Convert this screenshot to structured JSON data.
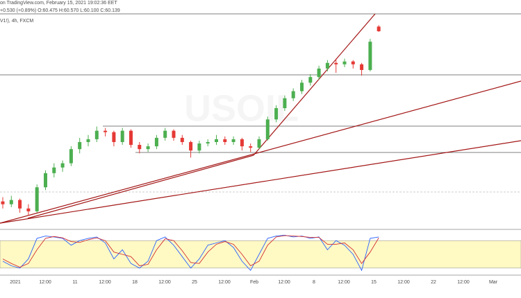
{
  "chart_data": {
    "type": "candlestick",
    "header": {
      "source": "on TradingView.com, February 15, 2021 19:02:36 EET",
      "quote": "+0.530 (+0.89%) O:60.475 H:60.570 L:60.100 C:60.139",
      "symbol": "V1!), 4h, FXCM",
      "watermark": "USOIL"
    },
    "up_color": "#4caf50",
    "down_color": "#e53935",
    "ylim": [
      46.17,
      61.37
    ],
    "ohlc": [
      [
        48.1,
        48.4,
        47.6,
        47.9
      ],
      [
        47.9,
        48.5,
        47.7,
        48.2
      ],
      [
        48.2,
        48.3,
        47.3,
        47.6
      ],
      [
        47.6,
        47.9,
        47.1,
        47.4
      ],
      [
        47.4,
        49.3,
        47.3,
        49.1
      ],
      [
        49.1,
        50.3,
        48.9,
        50.1
      ],
      [
        50.1,
        50.8,
        49.8,
        50.5
      ],
      [
        50.5,
        51.0,
        50.2,
        50.8
      ],
      [
        50.8,
        52.0,
        50.6,
        51.8
      ],
      [
        51.8,
        52.6,
        51.5,
        52.3
      ],
      [
        52.3,
        52.8,
        52.0,
        52.5
      ],
      [
        52.5,
        53.4,
        52.3,
        53.1
      ],
      [
        53.1,
        53.3,
        52.7,
        53.0
      ],
      [
        53.0,
        53.1,
        52.0,
        52.3
      ],
      [
        52.3,
        53.3,
        52.1,
        53.1
      ],
      [
        53.1,
        53.2,
        51.9,
        52.1
      ],
      [
        52.1,
        52.3,
        51.5,
        51.8
      ],
      [
        51.8,
        52.2,
        51.6,
        52.0
      ],
      [
        52.0,
        52.8,
        51.8,
        52.6
      ],
      [
        52.6,
        53.3,
        52.4,
        53.1
      ],
      [
        53.1,
        53.2,
        52.4,
        52.6
      ],
      [
        52.6,
        52.8,
        52.1,
        52.3
      ],
      [
        52.3,
        52.4,
        51.2,
        51.7
      ],
      [
        51.7,
        52.4,
        51.5,
        52.2
      ],
      [
        52.2,
        52.5,
        52.0,
        52.3
      ],
      [
        52.3,
        52.8,
        52.1,
        52.5
      ],
      [
        52.5,
        52.7,
        52.1,
        52.3
      ],
      [
        52.3,
        52.7,
        52.1,
        52.5
      ],
      [
        52.5,
        52.6,
        51.7,
        52.0
      ],
      [
        52.0,
        52.2,
        51.6,
        51.9
      ],
      [
        51.9,
        52.7,
        51.8,
        52.5
      ],
      [
        52.5,
        54.1,
        52.4,
        53.9
      ],
      [
        53.9,
        54.9,
        53.7,
        54.7
      ],
      [
        54.7,
        55.6,
        54.5,
        55.4
      ],
      [
        55.4,
        56.1,
        55.2,
        55.9
      ],
      [
        55.9,
        56.7,
        55.7,
        56.5
      ],
      [
        56.5,
        57.1,
        56.3,
        56.9
      ],
      [
        56.9,
        57.7,
        56.7,
        57.5
      ],
      [
        57.5,
        58.1,
        57.3,
        57.9
      ],
      [
        57.9,
        58.2,
        57.2,
        57.8
      ],
      [
        57.8,
        58.2,
        57.6,
        58.0
      ],
      [
        58.0,
        58.1,
        57.5,
        57.8
      ],
      [
        57.8,
        57.9,
        57.0,
        57.4
      ],
      [
        57.4,
        59.6,
        57.3,
        59.4
      ],
      [
        60.47,
        60.57,
        60.1,
        60.14
      ]
    ],
    "xtick_labels": [
      "2021",
      "12:00",
      "11",
      "12:00",
      "18",
      "12:00",
      "25",
      "12:00",
      "Feb",
      "12:00",
      "8",
      "12:00",
      "15",
      "12:00",
      "22",
      "12:00",
      "Mar"
    ],
    "oscillator": {
      "ylim": [
        0,
        100
      ],
      "band": [
        20,
        80
      ],
      "band_color": "#fff9c4",
      "series": [
        {
          "color": "#2962ff",
          "values": [
            35,
            25,
            20,
            40,
            85,
            90,
            88,
            85,
            70,
            80,
            85,
            88,
            75,
            40,
            60,
            30,
            20,
            35,
            80,
            88,
            70,
            45,
            20,
            40,
            70,
            75,
            80,
            65,
            35,
            15,
            50,
            85,
            90,
            92,
            88,
            90,
            85,
            88,
            60,
            80,
            70,
            50,
            15,
            85,
            88
          ]
        },
        {
          "color": "#d32f2f",
          "values": [
            40,
            30,
            22,
            30,
            60,
            85,
            89,
            86,
            78,
            76,
            82,
            86,
            80,
            55,
            50,
            45,
            25,
            28,
            60,
            84,
            80,
            58,
            32,
            30,
            55,
            72,
            78,
            72,
            50,
            25,
            35,
            70,
            88,
            91,
            90,
            89,
            87,
            87,
            72,
            72,
            75,
            60,
            30,
            55,
            86
          ]
        }
      ]
    }
  }
}
